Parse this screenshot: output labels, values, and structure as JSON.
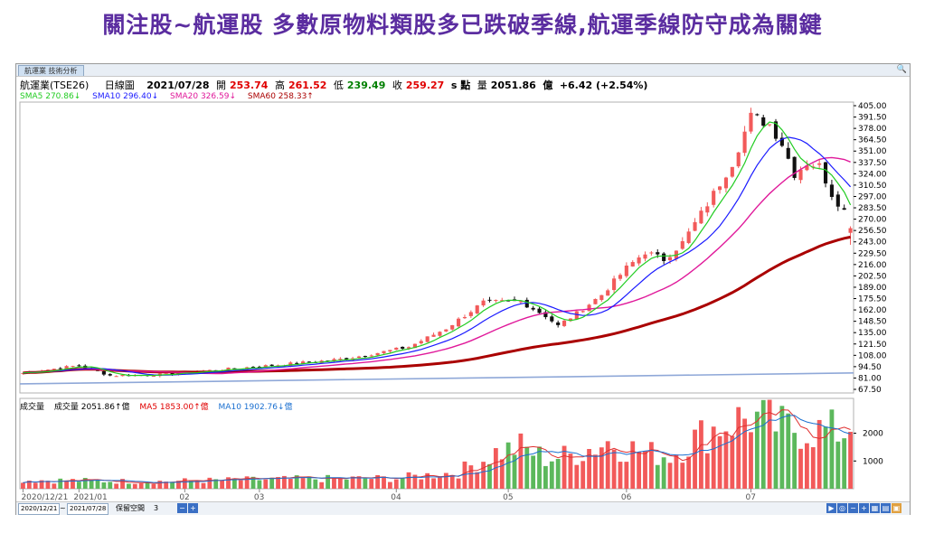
{
  "headline": "關注股~航運股  多數原物料類股多已跌破季線,航運季線防守成為關鍵",
  "tab_label": "航運業 技術分析",
  "info": {
    "name": "航運業(TSE26)",
    "period": "日線圖",
    "date": "2021/07/28",
    "open_label": "開",
    "open": "253.74",
    "high_label": "高",
    "high": "261.52",
    "low_label": "低",
    "low": "239.49",
    "close_label": "收",
    "close": "259.27",
    "unit": "s 點",
    "volume_label": "量",
    "volume": "2051.86",
    "volume_unit": "億",
    "change": "+6.42 (+2.54%)"
  },
  "sma": [
    {
      "text": "SMA5 270.86↓",
      "color": "#22cc22"
    },
    {
      "text": "SMA10 296.40↓",
      "color": "#1a1aff"
    },
    {
      "text": "SMA20 326.59↓",
      "color": "#e0199a"
    },
    {
      "text": "SMA60 258.33↑",
      "color": "#aa0000"
    }
  ],
  "vol_info": {
    "title": "成交量",
    "value": "成交量 2051.86↑億",
    "ma5": "MA5 1853.00↑億",
    "ma10": "MA10 1902.76↓億"
  },
  "bottom": {
    "from": "2020/12/21",
    "to": "2021/07/28",
    "keep_space": "保留空間",
    "keep_value": "3"
  },
  "colors": {
    "up": "#f25a5a",
    "down": "#111111",
    "vol_up": "#f25a5a",
    "vol_down": "#5cb85c",
    "sma5": "#22cc22",
    "sma10": "#1a1aff",
    "sma20": "#e0199a",
    "sma60": "#aa0000",
    "trend": "#8fa8d8"
  },
  "chart_data": {
    "type": "candlestick",
    "title": "航運業(TSE26)",
    "y_ticks": [
      "405.00",
      "391.50",
      "378.00",
      "364.50",
      "351.00",
      "337.50",
      "324.00",
      "310.50",
      "297.00",
      "283.50",
      "270.00",
      "256.50",
      "243.00",
      "229.50",
      "216.00",
      "202.50",
      "189.00",
      "175.50",
      "162.00",
      "148.50",
      "135.00",
      "121.50",
      "108.00",
      "94.50",
      "81.00",
      "67.50"
    ],
    "ylim": [
      67.5,
      405
    ],
    "x_ticks": [
      "2020/12/21",
      "2021/01",
      "02",
      "03",
      "04",
      "05",
      "06",
      "07"
    ],
    "x_tick_index": [
      0,
      9,
      26,
      38,
      60,
      78,
      97,
      117
    ],
    "volume_ticks": [
      "2000",
      "1000"
    ],
    "volume_ylim": [
      0,
      2800
    ],
    "anchors": [
      {
        "i": 0,
        "c": 87
      },
      {
        "i": 9,
        "c": 96
      },
      {
        "i": 14,
        "c": 84
      },
      {
        "i": 22,
        "c": 85
      },
      {
        "i": 30,
        "c": 90
      },
      {
        "i": 40,
        "c": 96
      },
      {
        "i": 52,
        "c": 104
      },
      {
        "i": 62,
        "c": 118
      },
      {
        "i": 68,
        "c": 140
      },
      {
        "i": 74,
        "c": 171
      },
      {
        "i": 80,
        "c": 172
      },
      {
        "i": 84,
        "c": 155
      },
      {
        "i": 86,
        "c": 143
      },
      {
        "i": 89,
        "c": 158
      },
      {
        "i": 93,
        "c": 180
      },
      {
        "i": 97,
        "c": 212
      },
      {
        "i": 100,
        "c": 231
      },
      {
        "i": 103,
        "c": 222
      },
      {
        "i": 106,
        "c": 242
      },
      {
        "i": 110,
        "c": 288
      },
      {
        "i": 114,
        "c": 337
      },
      {
        "i": 117,
        "c": 392
      },
      {
        "i": 120,
        "c": 383
      },
      {
        "i": 122,
        "c": 360
      },
      {
        "i": 124,
        "c": 324
      },
      {
        "i": 126,
        "c": 337
      },
      {
        "i": 128,
        "c": 333
      },
      {
        "i": 130,
        "c": 300
      },
      {
        "i": 132,
        "c": 280
      },
      {
        "i": 133,
        "c": 259.27
      }
    ],
    "volume_anchors": [
      {
        "i": 0,
        "v": 320
      },
      {
        "i": 20,
        "v": 260
      },
      {
        "i": 40,
        "v": 340
      },
      {
        "i": 60,
        "v": 380
      },
      {
        "i": 70,
        "v": 600
      },
      {
        "i": 76,
        "v": 1300
      },
      {
        "i": 80,
        "v": 1500
      },
      {
        "i": 84,
        "v": 1100
      },
      {
        "i": 88,
        "v": 1200
      },
      {
        "i": 94,
        "v": 1700
      },
      {
        "i": 100,
        "v": 1300
      },
      {
        "i": 104,
        "v": 1200
      },
      {
        "i": 108,
        "v": 1800
      },
      {
        "i": 112,
        "v": 2300
      },
      {
        "i": 117,
        "v": 2600
      },
      {
        "i": 122,
        "v": 2200
      },
      {
        "i": 128,
        "v": 2100
      },
      {
        "i": 133,
        "v": 2052
      }
    ],
    "sma_labels": [
      "SMA5",
      "SMA10",
      "SMA20",
      "SMA60"
    ],
    "last": {
      "open": 253.74,
      "high": 261.52,
      "low": 239.49,
      "close": 259.27,
      "volume": 2051.86
    }
  }
}
